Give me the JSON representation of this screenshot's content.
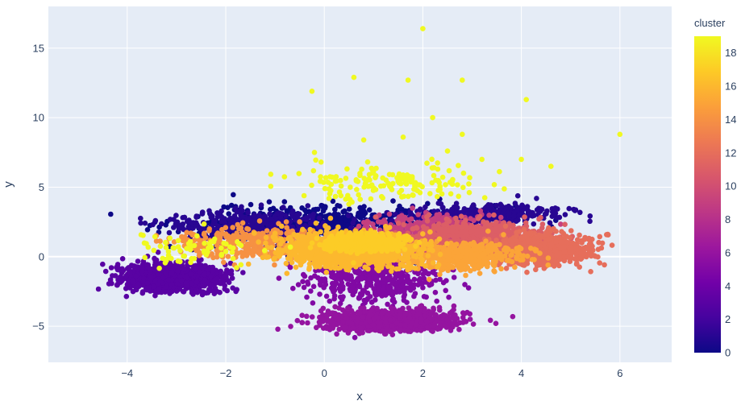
{
  "chart_data": {
    "type": "scatter",
    "xlabel": "x",
    "ylabel": "y",
    "xlim": [
      -5.6,
      7.05
    ],
    "ylim": [
      -7.6,
      18.0
    ],
    "x_ticks": [
      -4,
      -2,
      0,
      2,
      4,
      6
    ],
    "x_tick_labels": [
      "−4",
      "−2",
      "0",
      "2",
      "4",
      "6"
    ],
    "y_ticks": [
      -5,
      0,
      5,
      10,
      15
    ],
    "y_tick_labels": [
      "−5",
      "0",
      "5",
      "10",
      "15"
    ],
    "grid": true,
    "plot_background": "#e5ecf6",
    "colorbar": {
      "title": "cluster",
      "min": 0,
      "max": 19,
      "ticks": [
        0,
        2,
        4,
        6,
        8,
        10,
        12,
        14,
        16,
        18
      ],
      "tick_labels": [
        "0",
        "2",
        "4",
        "6",
        "8",
        "10",
        "12",
        "14",
        "16",
        "18"
      ],
      "colorscale": [
        "#0d0887",
        "#46039f",
        "#7201a8",
        "#9c179e",
        "#bd3786",
        "#d8576b",
        "#ed7953",
        "#fb9f3a",
        "#fdca26",
        "#f0f921"
      ]
    },
    "clusters": [
      {
        "cluster": 0,
        "cx": 0.0,
        "cy": 2.2,
        "sx": 2.3,
        "sy": 1.2,
        "n": 700
      },
      {
        "cluster": 1,
        "cx": -1.5,
        "cy": 2.3,
        "sx": 1.4,
        "sy": 0.9,
        "n": 350
      },
      {
        "cluster": 1,
        "cx": 3.3,
        "cy": 3.0,
        "sx": 1.2,
        "sy": 0.6,
        "n": 350
      },
      {
        "cluster": 3,
        "cx": -3.1,
        "cy": -1.5,
        "sx": 0.8,
        "sy": 0.8,
        "n": 1100
      },
      {
        "cluster": 5,
        "cx": 1.0,
        "cy": -1.5,
        "sx": 1.1,
        "sy": 1.5,
        "n": 500
      },
      {
        "cluster": 6,
        "cx": 1.3,
        "cy": -4.6,
        "sx": 1.1,
        "sy": 0.6,
        "n": 1000
      },
      {
        "cluster": 9,
        "cx": 2.3,
        "cy": 1.5,
        "sx": 1.1,
        "sy": 1.1,
        "n": 700
      },
      {
        "cluster": 11,
        "cx": 3.0,
        "cy": 1.5,
        "sx": 1.2,
        "sy": 0.9,
        "n": 500
      },
      {
        "cluster": 12,
        "cx": 4.4,
        "cy": 0.5,
        "sx": 0.9,
        "sy": 0.9,
        "n": 700
      },
      {
        "cluster": 14,
        "cx": -1.5,
        "cy": 1.0,
        "sx": 1.2,
        "sy": 1.0,
        "n": 350
      },
      {
        "cluster": 15,
        "cx": 2.8,
        "cy": 0.0,
        "sx": 1.0,
        "sy": 0.8,
        "n": 450
      },
      {
        "cluster": 16,
        "cx": 0.5,
        "cy": 0.5,
        "sx": 1.1,
        "sy": 1.0,
        "n": 1200
      },
      {
        "cluster": 17,
        "cx": 0.8,
        "cy": 1.0,
        "sx": 0.6,
        "sy": 0.5,
        "n": 600
      },
      {
        "cluster": 19,
        "cx": 1.3,
        "cy": 5.3,
        "sx": 1.5,
        "sy": 1.0,
        "n": 160
      },
      {
        "cluster": 19,
        "cx": -2.5,
        "cy": 0.5,
        "sx": 1.2,
        "sy": 1.2,
        "n": 70
      }
    ],
    "outliers": [
      {
        "x": 2.0,
        "y": 16.4,
        "cluster": 19
      },
      {
        "x": 0.6,
        "y": 12.9,
        "cluster": 19
      },
      {
        "x": 1.7,
        "y": 12.7,
        "cluster": 19
      },
      {
        "x": 2.8,
        "y": 12.7,
        "cluster": 19
      },
      {
        "x": -0.25,
        "y": 11.9,
        "cluster": 19
      },
      {
        "x": 4.1,
        "y": 11.3,
        "cluster": 19
      },
      {
        "x": 2.2,
        "y": 10.0,
        "cluster": 19
      },
      {
        "x": 6.0,
        "y": 8.8,
        "cluster": 19
      },
      {
        "x": 2.8,
        "y": 8.8,
        "cluster": 19
      },
      {
        "x": 1.6,
        "y": 8.6,
        "cluster": 19
      },
      {
        "x": 0.8,
        "y": 8.4,
        "cluster": 19
      },
      {
        "x": -0.2,
        "y": 7.5,
        "cluster": 19
      },
      {
        "x": 3.2,
        "y": 7.0,
        "cluster": 19
      },
      {
        "x": 4.0,
        "y": 7.0,
        "cluster": 19
      },
      {
        "x": 4.6,
        "y": 6.5,
        "cluster": 19
      },
      {
        "x": 2.5,
        "y": 7.6,
        "cluster": 19
      }
    ]
  }
}
